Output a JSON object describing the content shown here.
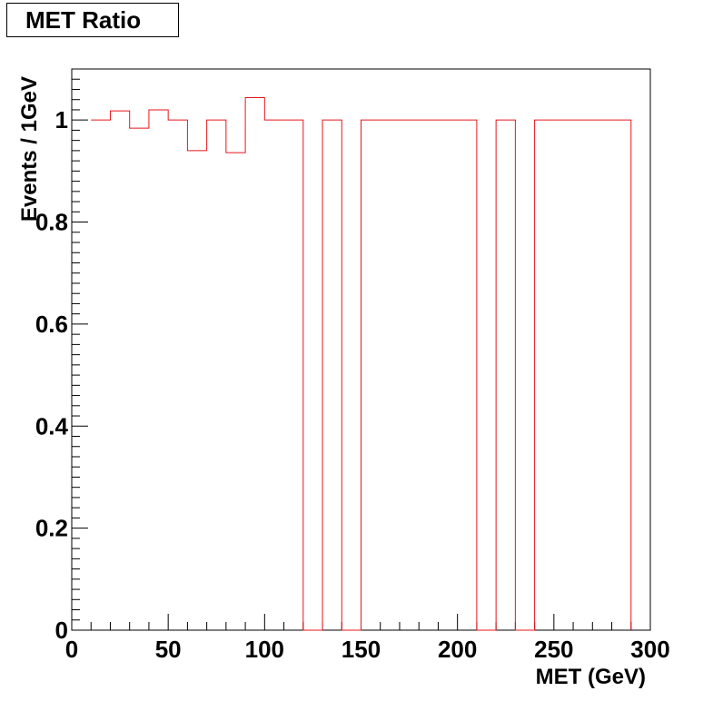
{
  "chart_data": {
    "type": "line",
    "style": "step-histogram",
    "title": "MET Ratio",
    "xlabel": "MET (GeV)",
    "ylabel": "Events / 1GeV",
    "xlim": [
      0,
      300
    ],
    "ylim": [
      0,
      1.1
    ],
    "x_ticks": [
      0,
      50,
      100,
      150,
      200,
      250,
      300
    ],
    "y_ticks": [
      0,
      0.2,
      0.4,
      0.6,
      0.8,
      1
    ],
    "y_tick_labels": [
      "0",
      "0.2",
      "0.4",
      "0.6",
      "0.8",
      "1"
    ],
    "bin_width": 10,
    "line_color": "#e8161a",
    "bins": [
      {
        "low": 10,
        "high": 20,
        "value": 1.0
      },
      {
        "low": 20,
        "high": 30,
        "value": 1.018
      },
      {
        "low": 30,
        "high": 40,
        "value": 0.984
      },
      {
        "low": 40,
        "high": 50,
        "value": 1.02
      },
      {
        "low": 50,
        "high": 60,
        "value": 1.0
      },
      {
        "low": 60,
        "high": 70,
        "value": 0.94
      },
      {
        "low": 70,
        "high": 80,
        "value": 1.0
      },
      {
        "low": 80,
        "high": 90,
        "value": 0.936
      },
      {
        "low": 90,
        "high": 100,
        "value": 1.044
      },
      {
        "low": 100,
        "high": 110,
        "value": 1.0
      },
      {
        "low": 110,
        "high": 120,
        "value": 1.0
      },
      {
        "low": 120,
        "high": 130,
        "value": 0
      },
      {
        "low": 130,
        "high": 140,
        "value": 1.0
      },
      {
        "low": 140,
        "high": 150,
        "value": 0
      },
      {
        "low": 150,
        "high": 160,
        "value": 1.0
      },
      {
        "low": 160,
        "high": 170,
        "value": 1.0
      },
      {
        "low": 170,
        "high": 180,
        "value": 1.0
      },
      {
        "low": 180,
        "high": 190,
        "value": 1.0
      },
      {
        "low": 190,
        "high": 200,
        "value": 1.0
      },
      {
        "low": 200,
        "high": 210,
        "value": 1.0
      },
      {
        "low": 210,
        "high": 220,
        "value": 0
      },
      {
        "low": 220,
        "high": 230,
        "value": 1.0
      },
      {
        "low": 230,
        "high": 240,
        "value": 0
      },
      {
        "low": 240,
        "high": 250,
        "value": 1.0
      },
      {
        "low": 250,
        "high": 260,
        "value": 1.0
      },
      {
        "low": 260,
        "high": 270,
        "value": 1.0
      },
      {
        "low": 270,
        "high": 280,
        "value": 1.0
      },
      {
        "low": 280,
        "high": 290,
        "value": 1.0
      }
    ]
  }
}
